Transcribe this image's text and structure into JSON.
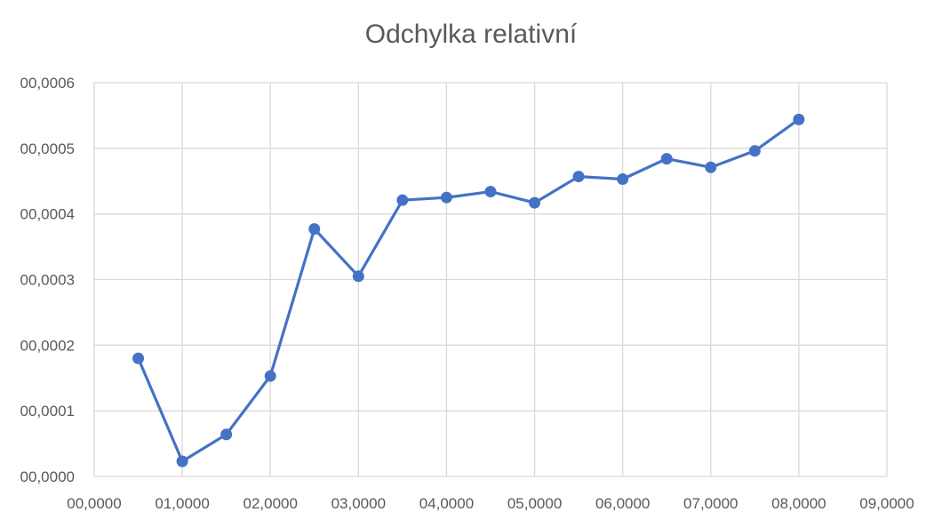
{
  "chart_data": {
    "type": "scatter",
    "title": "Odchylka relativní",
    "xlabel": "",
    "ylabel": "",
    "xlim": [
      0,
      9
    ],
    "ylim": [
      0,
      0.0006
    ],
    "x_ticks": [
      0,
      1,
      2,
      3,
      4,
      5,
      6,
      7,
      8,
      9
    ],
    "y_ticks": [
      0,
      0.0001,
      0.0002,
      0.0003,
      0.0004,
      0.0005,
      0.0006
    ],
    "x_tick_labels": [
      "00,0000",
      "01,0000",
      "02,0000",
      "03,0000",
      "04,0000",
      "05,0000",
      "06,0000",
      "07,0000",
      "08,0000",
      "09,0000"
    ],
    "y_tick_labels": [
      "00,0000",
      "00,0001",
      "00,0002",
      "00,0003",
      "00,0004",
      "00,0005",
      "00,0006"
    ],
    "grid": true,
    "legend": "none",
    "series": [
      {
        "color": "#4472C4",
        "style": "line-with-markers",
        "x": [
          0.5,
          1.0,
          1.5,
          2.0,
          2.5,
          3.0,
          3.5,
          4.0,
          4.5,
          5.0,
          5.5,
          6.0,
          6.5,
          7.0,
          7.5,
          8.0
        ],
        "y": [
          0.00018,
          2.3e-05,
          6.4e-05,
          0.000153,
          0.000377,
          0.000305,
          0.000421,
          0.000425,
          0.000434,
          0.000417,
          0.000457,
          0.000453,
          0.000484,
          0.000471,
          0.000496,
          0.000544
        ]
      }
    ]
  }
}
